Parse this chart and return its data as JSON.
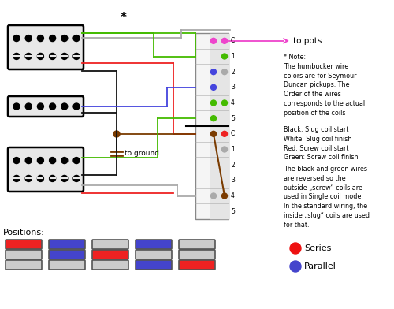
{
  "bg_color": "#ffffff",
  "note_text": "* Note:\nThe humbucker wire\ncolors are for Seymour\nDuncan pickups. The\nOrder of the wires\ncorresponds to the actual\nposition of the coils",
  "color_key": "Black: Slug coil start\nWhite: Slug coil finish\nRed: Screw coil start\nGreen: Screw coil finish",
  "extra_note": "The black and green wires\nare reversed so the\noutside „screw“ coils are\nused in Single coil mode.\nIn the standard wiring, the\ninside „slug“ coils are used\nfor that.",
  "positions_label": "Positions:",
  "series_label": "Series",
  "parallel_label": "Parallel",
  "pos1_rows": [
    "red",
    "gray",
    "gray"
  ],
  "pos2_rows": [
    "blue",
    "blue",
    "gray"
  ],
  "pos3_rows": [
    "gray",
    "red",
    "gray"
  ],
  "pos4_rows": [
    "blue",
    "gray",
    "blue"
  ],
  "pos5_rows": [
    "gray",
    "gray",
    "red"
  ],
  "series_color": "#ee1111",
  "parallel_color": "#4444cc",
  "green": "#44bb00",
  "red": "#ee2222",
  "blue": "#4444dd",
  "gray": "#aaaaaa",
  "brown": "#7a3b00",
  "pink": "#ee44cc",
  "black": "#111111"
}
